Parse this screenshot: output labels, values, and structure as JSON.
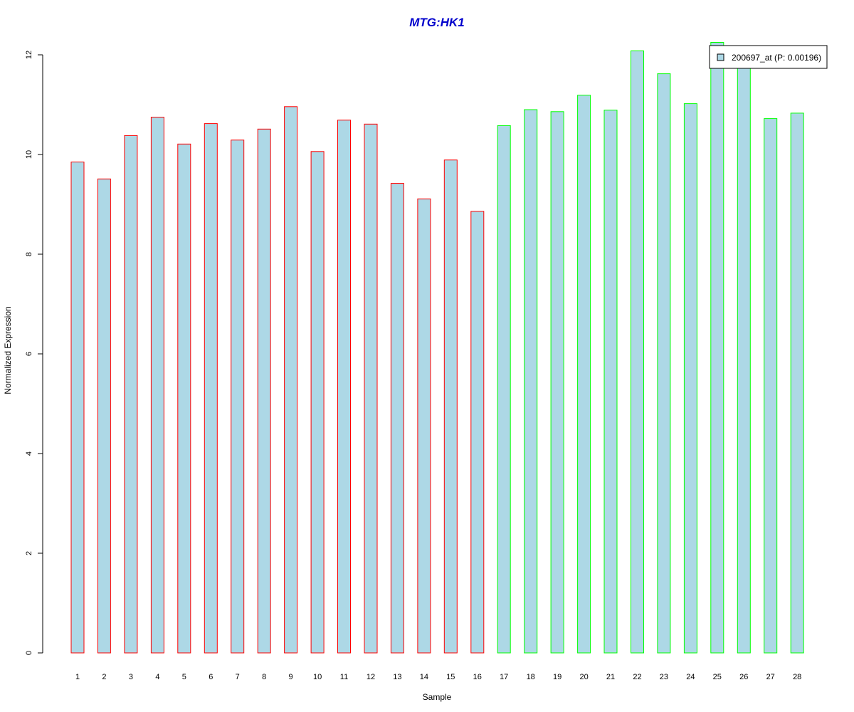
{
  "chart_data": {
    "type": "bar",
    "title": "MTG:HK1",
    "xlabel": "Sample",
    "ylabel": "Normalized Expression",
    "ylim": [
      0,
      12
    ],
    "yticks": [
      "0",
      "2",
      "4",
      "6",
      "8",
      "10",
      "12"
    ],
    "categories": [
      "1",
      "2",
      "3",
      "4",
      "5",
      "6",
      "7",
      "8",
      "9",
      "10",
      "11",
      "12",
      "13",
      "14",
      "15",
      "16",
      "17",
      "18",
      "19",
      "20",
      "21",
      "22",
      "23",
      "24",
      "25",
      "26",
      "27",
      "28"
    ],
    "series": [
      {
        "name": "200697_at (P: 0.00196)",
        "values": [
          9.85,
          9.51,
          10.38,
          10.75,
          10.21,
          10.62,
          10.29,
          10.51,
          10.96,
          10.06,
          10.69,
          10.61,
          9.42,
          9.11,
          9.89,
          8.86,
          10.58,
          10.9,
          10.86,
          11.19,
          10.89,
          12.08,
          11.62,
          11.02,
          12.25,
          11.82,
          10.72,
          10.83
        ]
      }
    ],
    "group_of_sample": [
      "A",
      "A",
      "A",
      "A",
      "A",
      "A",
      "A",
      "A",
      "A",
      "A",
      "A",
      "A",
      "A",
      "A",
      "A",
      "A",
      "B",
      "B",
      "B",
      "B",
      "B",
      "B",
      "B",
      "B",
      "B",
      "B",
      "B",
      "B"
    ],
    "colors": {
      "bar_fill": "#add8e6",
      "group_A_border": "#ff0000",
      "group_B_border": "#00ff00",
      "title": "#0000cc"
    },
    "legend_placement": "top-right",
    "grid": false
  }
}
